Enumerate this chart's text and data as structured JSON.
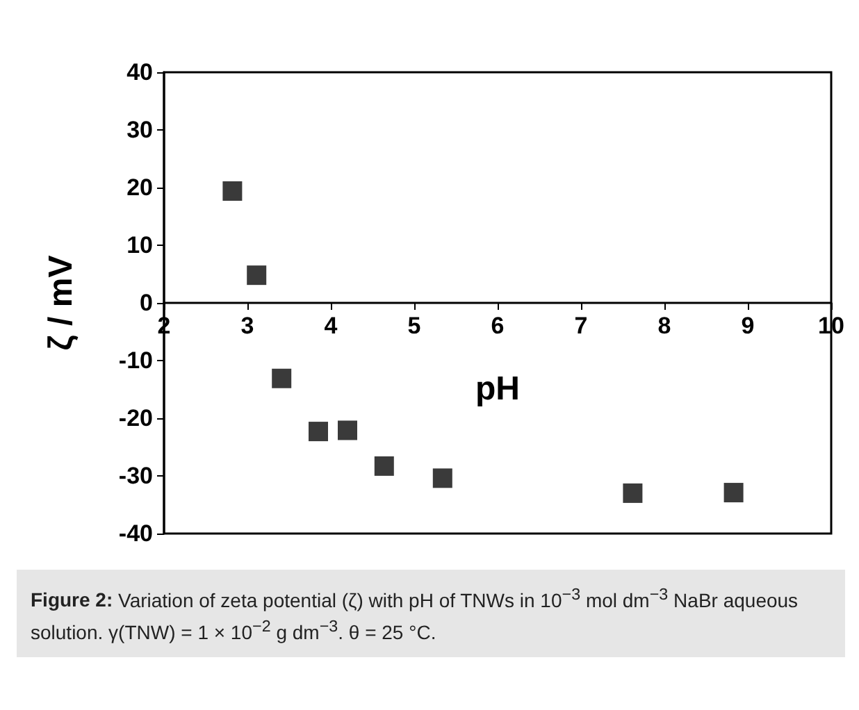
{
  "chart_data": {
    "type": "scatter",
    "xlabel": "pH",
    "ylabel": "ζ / mV",
    "x": [
      2.82,
      3.11,
      3.41,
      3.85,
      4.2,
      4.64,
      5.34,
      7.62,
      8.83
    ],
    "series": [
      {
        "color": "#3a3a3a",
        "values": [
          19.4,
          4.8,
          -13.1,
          -22.3,
          -22.1,
          -28.3,
          -30.4,
          -33,
          -32.9
        ]
      }
    ],
    "xlim": [
      2,
      10
    ],
    "xticks": [
      2,
      3,
      4,
      5,
      6,
      7,
      8,
      9,
      10
    ],
    "ylim": [
      -40,
      40
    ],
    "yticks": [
      -40,
      -30,
      -20,
      -10,
      0,
      10,
      20,
      30,
      40
    ],
    "marker": "square",
    "grid": false,
    "annotations": [
      "Figure 2:",
      "Variation of zeta potential (ζ) with pH of TNWs in 10$^{−3}$ mol dm$^{−3}$ NaBr aqueous solution. γ(TNW) = 1 × 10$^{−2}$ g dm$^{−3}$. θ = 25 °C."
    ]
  }
}
